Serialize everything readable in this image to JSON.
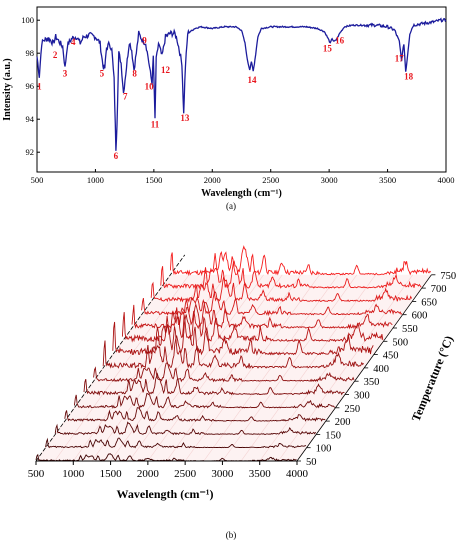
{
  "chart_data": [
    {
      "panel": "(a)",
      "type": "line",
      "xlabel": "Wavelength (cm⁻¹)",
      "ylabel": "Intensity (a.u.)",
      "xlim": [
        500,
        4000
      ],
      "ylim": [
        90.8,
        100.8
      ],
      "x_ticks": [
        "500",
        "1000",
        "1500",
        "2000",
        "2500",
        "3000",
        "3500",
        "4000"
      ],
      "y_ticks": [
        "92",
        "94",
        "96",
        "98",
        "100"
      ],
      "line_color": "#1c1c9c",
      "series": [
        {
          "values": [
            [
              500,
              97.8
            ],
            [
              520,
              96.6
            ],
            [
              540,
              98.6
            ],
            [
              560,
              98.8
            ],
            [
              600,
              98.9
            ],
            [
              640,
              98.6
            ],
            [
              660,
              99.0
            ],
            [
              690,
              98.7
            ],
            [
              720,
              98.4
            ],
            [
              740,
              97.1
            ],
            [
              760,
              98.5
            ],
            [
              800,
              98.9
            ],
            [
              840,
              99.0
            ],
            [
              870,
              98.6
            ],
            [
              900,
              99.0
            ],
            [
              950,
              99.1
            ],
            [
              1000,
              99.0
            ],
            [
              1040,
              98.6
            ],
            [
              1065,
              97.2
            ],
            [
              1080,
              97.1
            ],
            [
              1095,
              98.3
            ],
            [
              1120,
              98.6
            ],
            [
              1140,
              98.2
            ],
            [
              1160,
              96.4
            ],
            [
              1175,
              92.2
            ],
            [
              1185,
              93.8
            ],
            [
              1200,
              98.0
            ],
            [
              1220,
              97.4
            ],
            [
              1240,
              95.6
            ],
            [
              1260,
              96.8
            ],
            [
              1290,
              98.7
            ],
            [
              1310,
              98.2
            ],
            [
              1330,
              97.0
            ],
            [
              1350,
              98.0
            ],
            [
              1370,
              99.2
            ],
            [
              1400,
              98.8
            ],
            [
              1430,
              98.6
            ],
            [
              1450,
              97.8
            ],
            [
              1470,
              96.8
            ],
            [
              1485,
              96.2
            ],
            [
              1495,
              97.8
            ],
            [
              1510,
              94.0
            ],
            [
              1520,
              97.6
            ],
            [
              1540,
              98.6
            ],
            [
              1570,
              97.8
            ],
            [
              1600,
              99.0
            ],
            [
              1640,
              99.2
            ],
            [
              1680,
              99.2
            ],
            [
              1700,
              98.8
            ],
            [
              1740,
              97.4
            ],
            [
              1755,
              94.3
            ],
            [
              1770,
              97.2
            ],
            [
              1790,
              99.2
            ],
            [
              1850,
              99.5
            ],
            [
              1900,
              99.6
            ],
            [
              2000,
              99.5
            ],
            [
              2100,
              99.6
            ],
            [
              2200,
              99.6
            ],
            [
              2250,
              99.4
            ],
            [
              2280,
              98.6
            ],
            [
              2300,
              97.6
            ],
            [
              2320,
              97.0
            ],
            [
              2335,
              97.5
            ],
            [
              2350,
              96.9
            ],
            [
              2365,
              97.6
            ],
            [
              2390,
              99.0
            ],
            [
              2420,
              99.5
            ],
            [
              2500,
              99.6
            ],
            [
              2600,
              99.6
            ],
            [
              2700,
              99.6
            ],
            [
              2800,
              99.6
            ],
            [
              2900,
              99.5
            ],
            [
              2960,
              99.3
            ],
            [
              2990,
              98.9
            ],
            [
              3010,
              98.6
            ],
            [
              3025,
              98.9
            ],
            [
              3040,
              98.7
            ],
            [
              3060,
              98.8
            ],
            [
              3090,
              99.2
            ],
            [
              3130,
              99.6
            ],
            [
              3200,
              99.7
            ],
            [
              3300,
              99.7
            ],
            [
              3400,
              99.7
            ],
            [
              3500,
              99.6
            ],
            [
              3560,
              99.4
            ],
            [
              3600,
              98.7
            ],
            [
              3620,
              97.6
            ],
            [
              3640,
              98.6
            ],
            [
              3655,
              96.9
            ],
            [
              3670,
              97.8
            ],
            [
              3690,
              99.2
            ],
            [
              3720,
              99.7
            ],
            [
              3800,
              99.8
            ],
            [
              3900,
              99.9
            ],
            [
              3950,
              100.0
            ],
            [
              4000,
              100.0
            ]
          ]
        }
      ],
      "annotations": [
        {
          "text": "1",
          "x": 520,
          "y": 95.8
        },
        {
          "text": "2",
          "x": 655,
          "y": 97.7
        },
        {
          "text": "3",
          "x": 740,
          "y": 96.6
        },
        {
          "text": "4",
          "x": 810,
          "y": 98.5
        },
        {
          "text": "5",
          "x": 1055,
          "y": 96.6
        },
        {
          "text": "6",
          "x": 1175,
          "y": 91.6
        },
        {
          "text": "7",
          "x": 1255,
          "y": 95.2
        },
        {
          "text": "8",
          "x": 1335,
          "y": 96.6
        },
        {
          "text": "9",
          "x": 1420,
          "y": 98.6
        },
        {
          "text": "10",
          "x": 1460,
          "y": 95.8
        },
        {
          "text": "11",
          "x": 1510,
          "y": 93.5
        },
        {
          "text": "12",
          "x": 1600,
          "y": 96.8
        },
        {
          "text": "13",
          "x": 1765,
          "y": 93.9
        },
        {
          "text": "14",
          "x": 2340,
          "y": 96.2
        },
        {
          "text": "15",
          "x": 2985,
          "y": 98.1
        },
        {
          "text": "16",
          "x": 3090,
          "y": 98.6
        },
        {
          "text": "17",
          "x": 3600,
          "y": 97.5
        },
        {
          "text": "18",
          "x": 3680,
          "y": 96.4
        }
      ]
    },
    {
      "panel": "(b)",
      "type": "line",
      "subtype": "3d-waterfall",
      "xlabel": "Wavelength (cm⁻¹)",
      "zlabel": "Temperature (°C)",
      "xlim": [
        500,
        4000
      ],
      "x_ticks": [
        "500",
        "1000",
        "1500",
        "2000",
        "2500",
        "3000",
        "3500",
        "4000"
      ],
      "temperatures": [
        "50",
        "100",
        "150",
        "200",
        "250",
        "300",
        "350",
        "400",
        "450",
        "500",
        "550",
        "600",
        "650",
        "700",
        "750"
      ],
      "series_colors": [
        "#3c0000",
        "#4a0505",
        "#580707",
        "#650909",
        "#720b0b",
        "#800d0d",
        "#8e0f0f",
        "#9c1111",
        "#aa1212",
        "#b81414",
        "#c51616",
        "#d31818",
        "#e01a1a",
        "#ec1c1c",
        "#f51e1e"
      ],
      "series_peak_height": [
        0.35,
        0.45,
        0.55,
        0.6,
        0.7,
        0.9,
        0.8,
        1.4,
        1.8,
        1.6,
        1.2,
        1.0,
        1.1,
        1.2,
        1.3
      ]
    }
  ],
  "captions": {
    "a": "(a)",
    "b": "(b)"
  }
}
